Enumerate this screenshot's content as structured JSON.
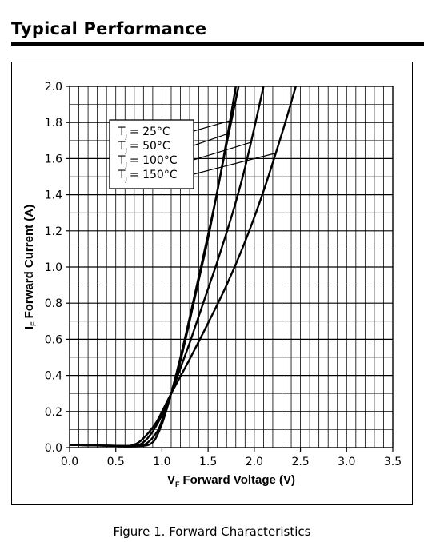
{
  "header": {
    "title": "Typical Performance"
  },
  "caption": "Figure 1. Forward Characteristics",
  "chart_data": {
    "type": "line",
    "xlabel_sub": "F",
    "xlabel": "Forward Voltage (V)",
    "xlabel_var": "V",
    "ylabel_var": "I",
    "ylabel_sub": "F",
    "ylabel": "Forward Current (A)",
    "xlim": [
      0,
      3.5
    ],
    "ylim": [
      0,
      2.0
    ],
    "xticks": [
      "0.0",
      "0.5",
      "1.0",
      "1.5",
      "2.0",
      "2.5",
      "3.0",
      "3.5"
    ],
    "yticks": [
      "0.0",
      "0.2",
      "0.4",
      "0.6",
      "0.8",
      "1.0",
      "1.2",
      "1.4",
      "1.6",
      "1.8",
      "2.0"
    ],
    "grid": true,
    "minor_grid_x_step": 0.1,
    "minor_grid_y_step": 0.1,
    "legend_position": "top-left",
    "series": [
      {
        "name": "T_J = 25°C",
        "label_var": "T",
        "label_sub": "J",
        "label_rest": "= 25°C",
        "x": [
          0,
          0.5,
          0.8,
          0.9,
          0.95,
          1.0,
          1.05,
          1.1,
          1.2,
          1.3,
          1.4,
          1.5,
          1.6,
          1.7,
          1.8
        ],
        "y": [
          0.015,
          0.01,
          0.01,
          0.03,
          0.07,
          0.13,
          0.21,
          0.3,
          0.5,
          0.72,
          0.95,
          1.18,
          1.42,
          1.7,
          2.0
        ]
      },
      {
        "name": "T_J = 50°C",
        "label_var": "T",
        "label_sub": "J",
        "label_rest": "= 50°C",
        "x": [
          0,
          0.5,
          0.75,
          0.85,
          0.95,
          1.0,
          1.1,
          1.2,
          1.3,
          1.4,
          1.5,
          1.6,
          1.7,
          1.83
        ],
        "y": [
          0.015,
          0.01,
          0.01,
          0.03,
          0.09,
          0.15,
          0.3,
          0.48,
          0.7,
          0.93,
          1.16,
          1.42,
          1.68,
          2.0
        ]
      },
      {
        "name": "T_J = 100°C",
        "label_var": "T",
        "label_sub": "J",
        "label_rest": "= 100°C",
        "x": [
          0,
          0.5,
          0.7,
          0.8,
          0.9,
          1.0,
          1.1,
          1.2,
          1.3,
          1.4,
          1.5,
          1.6,
          1.7,
          1.8,
          1.9,
          2.0,
          2.1
        ],
        "y": [
          0.015,
          0.01,
          0.01,
          0.03,
          0.09,
          0.18,
          0.3,
          0.44,
          0.58,
          0.73,
          0.88,
          1.03,
          1.19,
          1.36,
          1.55,
          1.77,
          2.0
        ]
      },
      {
        "name": "T_J = 150°C",
        "label_var": "T",
        "label_sub": "J",
        "label_rest": "= 150°C",
        "x": [
          0,
          0.5,
          0.65,
          0.75,
          0.85,
          0.95,
          1.1,
          1.3,
          1.5,
          1.7,
          1.9,
          2.1,
          2.3,
          2.45
        ],
        "y": [
          0.015,
          0.01,
          0.01,
          0.03,
          0.08,
          0.15,
          0.3,
          0.49,
          0.69,
          0.9,
          1.14,
          1.42,
          1.74,
          2.0
        ]
      }
    ]
  }
}
